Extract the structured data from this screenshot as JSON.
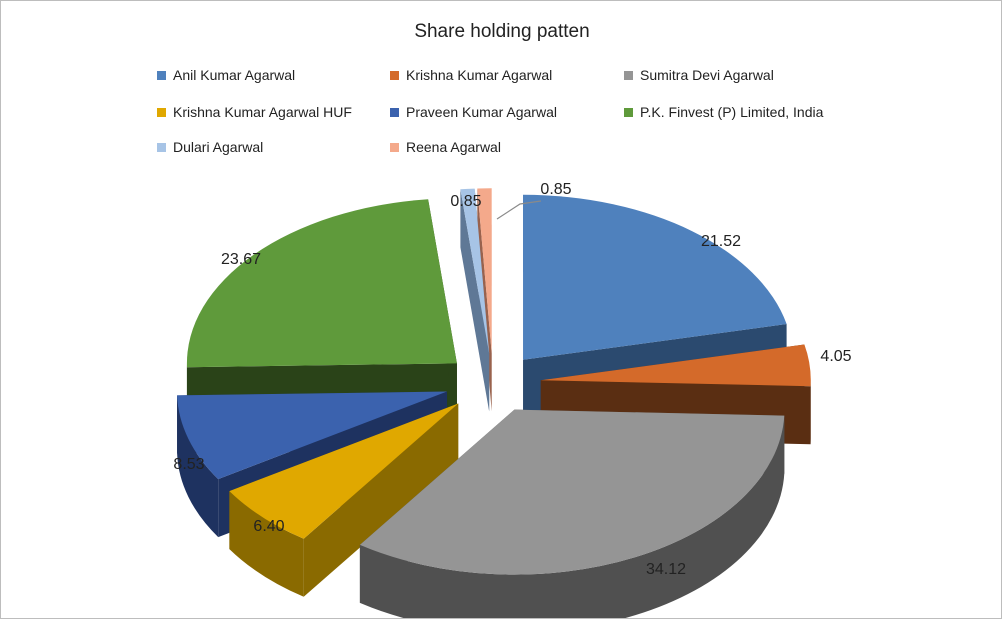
{
  "chart_data": {
    "type": "pie",
    "title": "Share holding patten",
    "legend_position": "top",
    "series": [
      {
        "name": "Anil Kumar Agarwal",
        "value": 21.52,
        "label": "21.52",
        "color": "#4F81BD",
        "side": "#2B4A6F"
      },
      {
        "name": "Krishna Kumar Agarwal",
        "value": 4.05,
        "label": "4.05",
        "color": "#D46A2A",
        "side": "#5A2E12"
      },
      {
        "name": "Sumitra Devi Agarwal",
        "value": 34.12,
        "label": "34.12",
        "color": "#959595",
        "side": "#505050"
      },
      {
        "name": "Krishna Kumar Agarwal HUF",
        "value": 6.4,
        "label": "6.40",
        "color": "#E0A800",
        "side": "#8A6A00"
      },
      {
        "name": "Praveen Kumar Agarwal",
        "value": 8.53,
        "label": "8.53",
        "color": "#3B62AE",
        "side": "#1E3260"
      },
      {
        "name": "P.K. Finvest (P) Limited, India",
        "value": 23.67,
        "label": "23.67",
        "color": "#5F9A3B",
        "side": "#2A4318"
      },
      {
        "name": "Dulari Agarwal",
        "value": 0.85,
        "label": "0.85",
        "color": "#A7C4E6",
        "side": "#5F7896"
      },
      {
        "name": "Reena Agarwal",
        "value": 0.85,
        "label": "0.85",
        "color": "#F4A98B",
        "side": "#99624D"
      }
    ]
  }
}
